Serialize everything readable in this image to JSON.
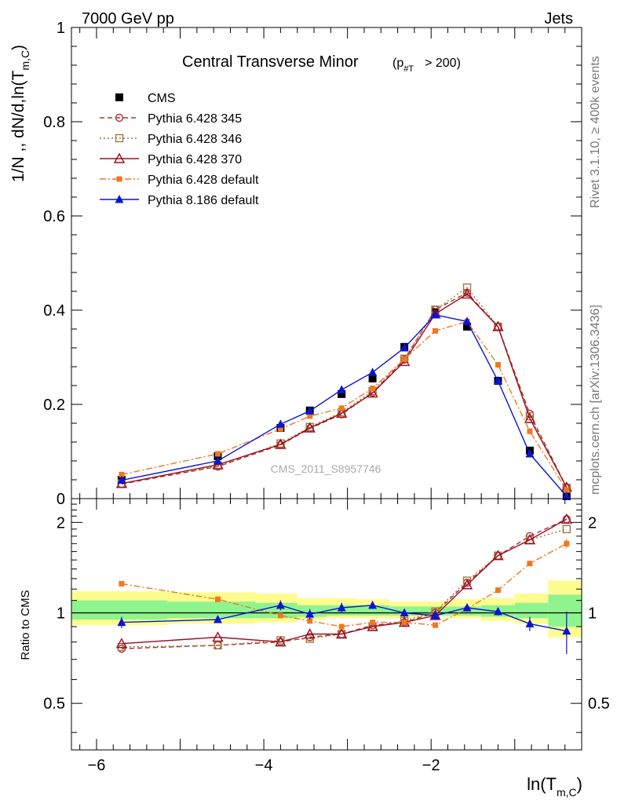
{
  "header": {
    "energy": "7000 GeV pp",
    "process": "Jets",
    "rivet": "Rivet 3.1.10, ≥ 400k events",
    "mcplots": "mcplots.cern.ch [arXiv:1306.3436]",
    "watermark": "CMS_2011_S8957746"
  },
  "chart_data": [
    {
      "type": "line",
      "panel": "main",
      "title": "Central Transverse Minor",
      "title_cut": "(p",
      "title_cut_sub": "#T",
      "title_cut_rest": "> 200)",
      "ylabel": "1/N ,, dN/d,ln(T",
      "ylabel_sub": "m,C",
      "ylabel_end": ")",
      "xlim": [
        -6.3,
        -0.2
      ],
      "ylim": [
        0,
        1.0
      ],
      "y_ticks": [
        0,
        0.2,
        0.4,
        0.6,
        0.8,
        1
      ],
      "y_tick_labels": [
        "0",
        "0.2",
        "0.4",
        "0.6",
        "0.8",
        "1"
      ],
      "legend_position": "top-left",
      "x": [
        -5.7,
        -4.55,
        -3.8,
        -3.45,
        -3.07,
        -2.7,
        -2.32,
        -1.95,
        -1.57,
        -1.2,
        -0.82,
        -0.38
      ],
      "series": [
        {
          "name": "CMS",
          "color": "#000000",
          "marker": "square-filled",
          "line": "none",
          "values": [
            0.04,
            0.09,
            0.15,
            0.187,
            0.222,
            0.255,
            0.322,
            0.396,
            0.365,
            0.25,
            0.102,
            0.005
          ],
          "errors": [
            0.003,
            0.003,
            0.004,
            0.004,
            0.005,
            0.005,
            0.006,
            0.006,
            0.006,
            0.005,
            0.003,
            0.002
          ]
        },
        {
          "name": "Pythia 6.428 345",
          "color": "#b03030",
          "marker": "circle-open",
          "line": "dashed",
          "values": [
            0.031,
            0.068,
            0.114,
            0.149,
            0.179,
            0.225,
            0.295,
            0.401,
            0.437,
            0.365,
            0.18,
            0.024
          ]
        },
        {
          "name": "Pythia 6.428 346",
          "color": "#a07840",
          "marker": "square-open",
          "line": "dotted",
          "values": [
            0.032,
            0.07,
            0.117,
            0.152,
            0.183,
            0.228,
            0.297,
            0.401,
            0.448,
            0.365,
            0.175,
            0.023
          ]
        },
        {
          "name": "Pythia 6.428 370",
          "color": "#9a1020",
          "marker": "triangle-open",
          "line": "solid",
          "values": [
            0.032,
            0.072,
            0.115,
            0.15,
            0.181,
            0.224,
            0.291,
            0.392,
            0.434,
            0.365,
            0.17,
            0.024
          ]
        },
        {
          "name": "Pythia 6.428 default",
          "color": "#f07820",
          "marker": "square-filled-small",
          "line": "dashdot",
          "values": [
            0.051,
            0.095,
            0.148,
            0.175,
            0.192,
            0.234,
            0.296,
            0.356,
            0.376,
            0.284,
            0.143,
            0.018
          ]
        },
        {
          "name": "Pythia 8.186 default",
          "color": "#0a14d6",
          "marker": "triangle-filled",
          "line": "solid",
          "values": [
            0.039,
            0.08,
            0.158,
            0.186,
            0.231,
            0.268,
            0.32,
            0.39,
            0.376,
            0.25,
            0.095,
            0.005
          ]
        }
      ]
    },
    {
      "type": "line",
      "panel": "ratio",
      "ylabel": "Ratio to CMS",
      "xlabel": "ln(T",
      "xlabel_sub": "m,C",
      "xlabel_end": ")",
      "xlim": [
        -6.3,
        -0.2
      ],
      "ylim": [
        0.35,
        2.4
      ],
      "y_ticks": [
        0.5,
        1,
        2
      ],
      "y_tick_labels": [
        "0.5",
        "1",
        "2"
      ],
      "x_ticks": [
        -6,
        -4,
        -2
      ],
      "x_tick_labels": [
        "−6",
        "−4",
        "−2"
      ],
      "bands": {
        "edges": [
          -6.3,
          -5.15,
          -4.1,
          -3.6,
          -3.25,
          -2.9,
          -2.5,
          -2.15,
          -1.75,
          -1.4,
          -1.0,
          -0.6,
          -0.2
        ],
        "yellow": [
          [
            0.91,
            1.18
          ],
          [
            0.92,
            1.17
          ],
          [
            0.93,
            1.16
          ],
          [
            0.95,
            1.12
          ],
          [
            0.96,
            1.12
          ],
          [
            0.96,
            1.11
          ],
          [
            0.96,
            1.09
          ],
          [
            0.97,
            1.09
          ],
          [
            0.96,
            1.11
          ],
          [
            0.94,
            1.12
          ],
          [
            0.92,
            1.16
          ],
          [
            0.83,
            1.28
          ]
        ],
        "green": [
          [
            0.95,
            1.1
          ],
          [
            0.96,
            1.09
          ],
          [
            0.96,
            1.08
          ],
          [
            0.97,
            1.06
          ],
          [
            0.98,
            1.06
          ],
          [
            0.98,
            1.06
          ],
          [
            0.98,
            1.05
          ],
          [
            0.98,
            1.05
          ],
          [
            0.98,
            1.05
          ],
          [
            0.97,
            1.06
          ],
          [
            0.96,
            1.08
          ],
          [
            0.9,
            1.15
          ]
        ]
      },
      "x": [
        -5.7,
        -4.55,
        -3.8,
        -3.45,
        -3.07,
        -2.7,
        -2.32,
        -1.95,
        -1.57,
        -1.2,
        -0.82,
        -0.38
      ],
      "series": [
        {
          "name": "Pythia 6.428 345",
          "color": "#b03030",
          "marker": "circle-open",
          "line": "dashed",
          "values": [
            0.76,
            0.78,
            0.8,
            0.83,
            0.85,
            0.91,
            0.93,
            1.0,
            1.26,
            1.55,
            1.8,
            2.05
          ]
        },
        {
          "name": "Pythia 6.428 346",
          "color": "#a07840",
          "marker": "square-open",
          "line": "dotted",
          "values": [
            0.77,
            0.78,
            0.81,
            0.82,
            0.85,
            0.9,
            0.94,
            1.01,
            1.28,
            1.55,
            1.75,
            1.9
          ]
        },
        {
          "name": "Pythia 6.428 370",
          "color": "#9a1020",
          "marker": "triangle-open",
          "line": "solid",
          "values": [
            0.79,
            0.83,
            0.8,
            0.85,
            0.85,
            0.9,
            0.93,
            0.98,
            1.24,
            1.55,
            1.75,
            2.05
          ]
        },
        {
          "name": "Pythia 6.428 default",
          "color": "#f07820",
          "marker": "square-filled-small",
          "line": "dashdot",
          "values": [
            1.25,
            1.11,
            0.98,
            0.94,
            0.9,
            0.93,
            0.93,
            0.91,
            1.03,
            1.19,
            1.46,
            1.7
          ],
          "errors": [
            0.01,
            0.01,
            0.01,
            0.01,
            0.01,
            0.01,
            0.01,
            0.01,
            0.02,
            0.02,
            0.03,
            0.06
          ]
        },
        {
          "name": "Pythia 8.186 default",
          "color": "#0a14d6",
          "marker": "triangle-filled",
          "line": "solid",
          "values": [
            0.93,
            0.95,
            1.06,
            0.99,
            1.04,
            1.06,
            1.0,
            0.98,
            1.04,
            1.01,
            0.92,
            0.87
          ],
          "errors": [
            0.04,
            0.02,
            0.04,
            0.04,
            0.04,
            0.03,
            0.03,
            0.03,
            0.02,
            0.03,
            0.05,
            0.14
          ]
        }
      ]
    }
  ]
}
